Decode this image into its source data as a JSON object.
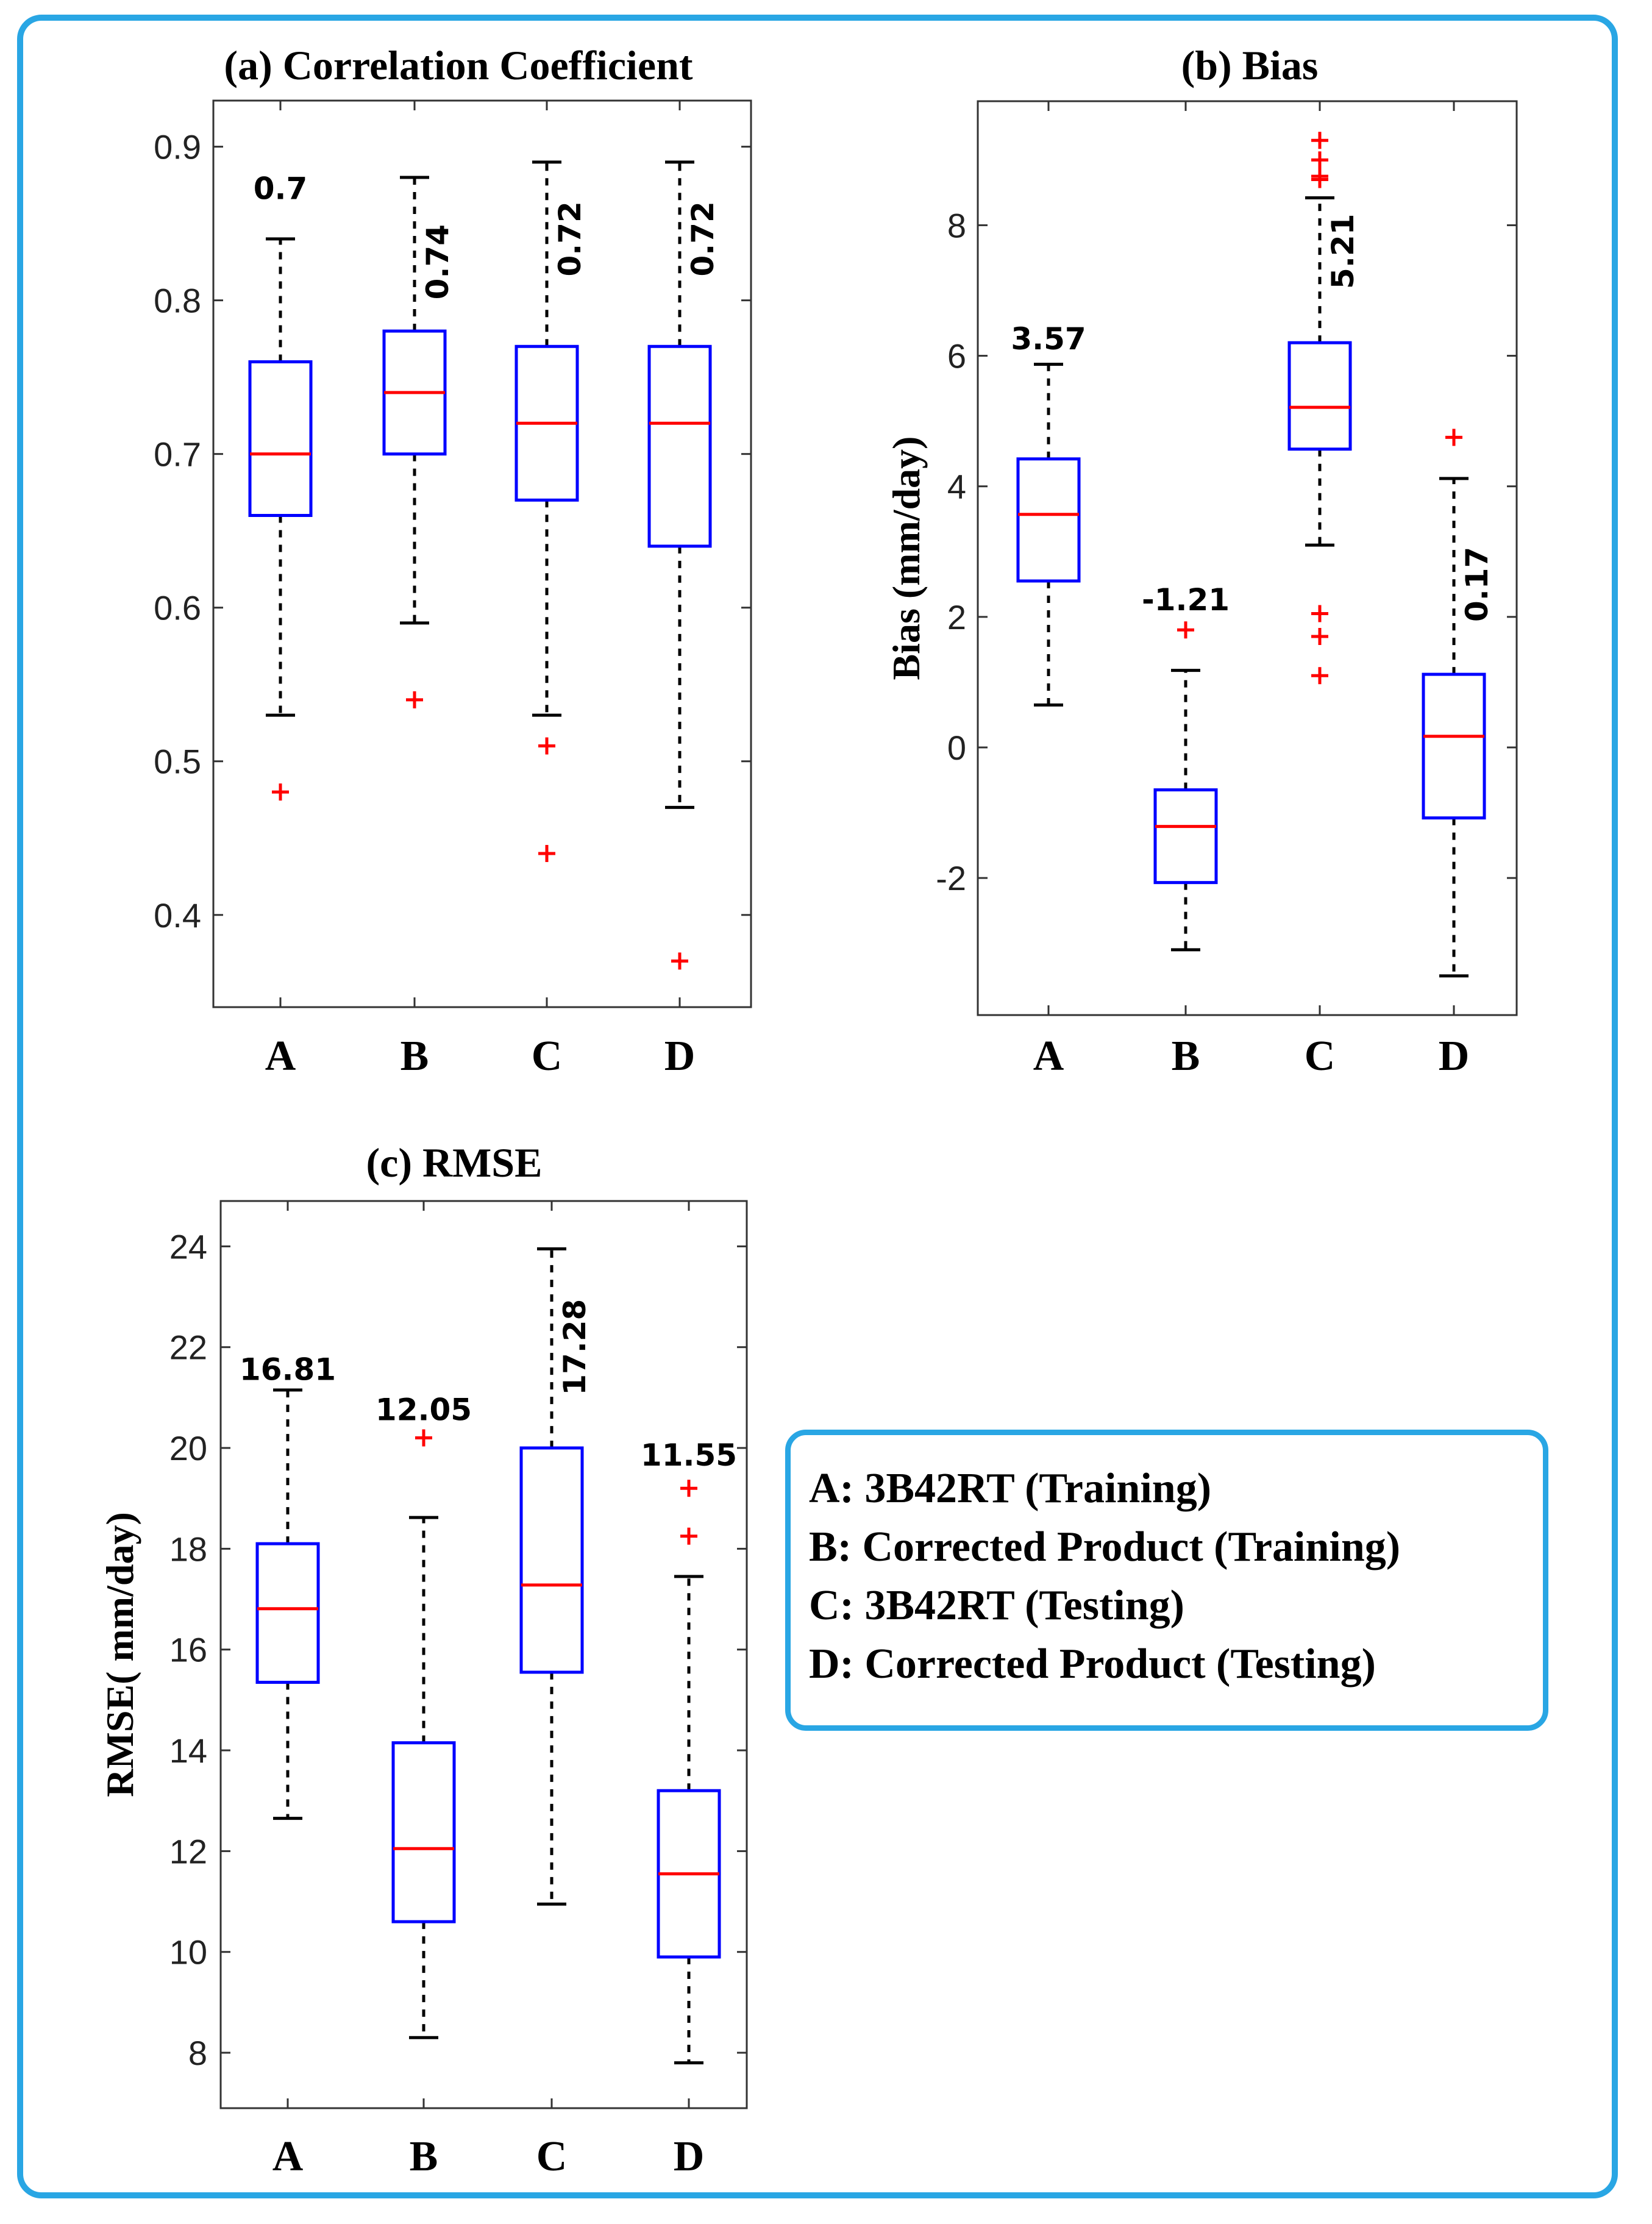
{
  "chart_data": [
    {
      "type": "box",
      "title": "(a) Correlation Coefficient",
      "ylabel": "",
      "categories": [
        "A",
        "B",
        "C",
        "D"
      ],
      "ylim": [
        0.34,
        0.93
      ],
      "yticks": [
        0.4,
        0.5,
        0.6,
        0.7,
        0.8,
        0.9
      ],
      "ytick_labels": [
        "0.4",
        "0.5",
        "0.6",
        "0.7",
        "0.8",
        "0.9"
      ],
      "boxes": [
        {
          "whisker_low": 0.53,
          "q1": 0.66,
          "median": 0.7,
          "q3": 0.76,
          "whisker_high": 0.84,
          "outliers": [
            0.48
          ],
          "label": "0.7",
          "label_rotated": false,
          "label_y": 0.866
        },
        {
          "whisker_low": 0.59,
          "q1": 0.7,
          "median": 0.74,
          "q3": 0.78,
          "whisker_high": 0.88,
          "outliers": [
            0.54
          ],
          "label": "0.74",
          "label_rotated": true,
          "label_y": 0.825
        },
        {
          "whisker_low": 0.53,
          "q1": 0.67,
          "median": 0.72,
          "q3": 0.77,
          "whisker_high": 0.89,
          "outliers": [
            0.51,
            0.44
          ],
          "label": "0.72",
          "label_rotated": true,
          "label_y": 0.84
        },
        {
          "whisker_low": 0.47,
          "q1": 0.64,
          "median": 0.72,
          "q3": 0.77,
          "whisker_high": 0.89,
          "outliers": [
            0.37
          ],
          "label": "0.72",
          "label_rotated": true,
          "label_y": 0.84
        }
      ]
    },
    {
      "type": "box",
      "title": "(b)  Bias",
      "ylabel": "Bias (mm/day)",
      "categories": [
        "A",
        "B",
        "C",
        "D"
      ],
      "ylim": [
        -4.1,
        9.9
      ],
      "yticks": [
        -2,
        0,
        2,
        4,
        6,
        8
      ],
      "ytick_labels": [
        "-2",
        "0",
        "2",
        "4",
        "6",
        "8"
      ],
      "boxes": [
        {
          "whisker_low": 0.65,
          "q1": 2.55,
          "median": 3.57,
          "q3": 4.42,
          "whisker_high": 5.87,
          "outliers": [],
          "label": "3.57",
          "label_rotated": false,
          "label_y": 6.1
        },
        {
          "whisker_low": -3.1,
          "q1": -2.07,
          "median": -1.21,
          "q3": -0.65,
          "whisker_high": 1.18,
          "outliers": [
            1.8
          ],
          "label": "-1.21",
          "label_rotated": false,
          "label_y": 2.1
        },
        {
          "whisker_low": 3.1,
          "q1": 4.57,
          "median": 5.21,
          "q3": 6.2,
          "whisker_high": 8.42,
          "outliers": [
            9.3,
            9.0,
            8.7,
            8.75,
            2.05,
            1.7,
            1.1
          ],
          "label": "5.21",
          "label_rotated": true,
          "label_y": 7.6
        },
        {
          "whisker_low": -3.5,
          "q1": -1.08,
          "median": 0.17,
          "q3": 1.12,
          "whisker_high": 4.12,
          "outliers": [
            4.75
          ],
          "label": "0.17",
          "label_rotated": true,
          "label_y": 2.5
        }
      ]
    },
    {
      "type": "box",
      "title": "(c) RMSE",
      "ylabel": "RMSE( mm/day)",
      "categories": [
        "A",
        "B",
        "C",
        "D"
      ],
      "ylim": [
        6.9,
        24.9
      ],
      "yticks": [
        8,
        10,
        12,
        14,
        16,
        18,
        20,
        22,
        24
      ],
      "ytick_labels": [
        "8",
        "10",
        "12",
        "14",
        "16",
        "18",
        "20",
        "22",
        "24"
      ],
      "boxes": [
        {
          "whisker_low": 12.65,
          "q1": 15.35,
          "median": 16.81,
          "q3": 18.1,
          "whisker_high": 21.15,
          "outliers": [],
          "label": "16.81",
          "label_rotated": false,
          "label_y": 21.35
        },
        {
          "whisker_low": 8.3,
          "q1": 10.6,
          "median": 12.05,
          "q3": 14.15,
          "whisker_high": 18.62,
          "outliers": [
            20.2
          ],
          "label": "12.05",
          "label_rotated": false,
          "label_y": 20.55
        },
        {
          "whisker_low": 10.95,
          "q1": 15.55,
          "median": 17.28,
          "q3": 20.0,
          "whisker_high": 23.95,
          "outliers": [],
          "label": "17.28",
          "label_rotated": true,
          "label_y": 22.0
        },
        {
          "whisker_low": 7.8,
          "q1": 9.9,
          "median": 11.55,
          "q3": 13.2,
          "whisker_high": 17.45,
          "outliers": [
            19.2,
            18.25
          ],
          "label": "11.55",
          "label_rotated": false,
          "label_y": 19.65
        }
      ]
    }
  ],
  "legend": {
    "entries": [
      "A: 3B42RT (Training)",
      "B: Corrected Product (Training)",
      "C: 3B42RT (Testing)",
      "D: Corrected Product (Testing)"
    ]
  },
  "colors": {
    "box": "#0000ff",
    "median": "#ff0000",
    "outlier": "#ff0000",
    "whisker": "#000000",
    "frame": "#29a6e4"
  }
}
